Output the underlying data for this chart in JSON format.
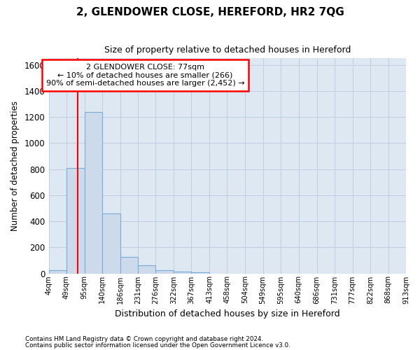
{
  "title_line1": "2, GLENDOWER CLOSE, HEREFORD, HR2 7QG",
  "title_line2": "Size of property relative to detached houses in Hereford",
  "xlabel": "Distribution of detached houses by size in Hereford",
  "ylabel": "Number of detached properties",
  "footer_line1": "Contains HM Land Registry data © Crown copyright and database right 2024.",
  "footer_line2": "Contains public sector information licensed under the Open Government Licence v3.0.",
  "annotation_line1": "2 GLENDOWER CLOSE: 77sqm",
  "annotation_line2": "← 10% of detached houses are smaller (266)",
  "annotation_line3": "90% of semi-detached houses are larger (2,452) →",
  "bar_color": "#ccdaeb",
  "bar_edge_color": "#7aadd4",
  "red_line_x": 77,
  "bin_edges": [
    4,
    49,
    95,
    140,
    186,
    231,
    276,
    322,
    367,
    413,
    458,
    504,
    549,
    595,
    640,
    686,
    731,
    777,
    822,
    868,
    913
  ],
  "bar_heights": [
    25,
    810,
    1240,
    460,
    125,
    60,
    25,
    12,
    8,
    0,
    0,
    0,
    0,
    0,
    0,
    0,
    0,
    0,
    0,
    0
  ],
  "ylim": [
    0,
    1650
  ],
  "yticks": [
    0,
    200,
    400,
    600,
    800,
    1000,
    1200,
    1400,
    1600
  ],
  "grid_color": "#c0cfe0",
  "bg_color": "#dde8f3"
}
